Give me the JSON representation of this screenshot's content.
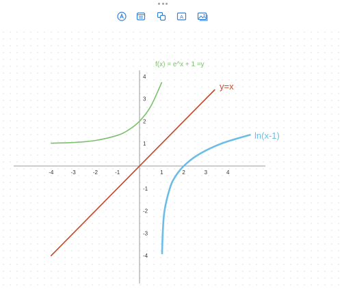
{
  "toolbar": {
    "tools": [
      {
        "icon": "pen-circle-icon"
      },
      {
        "icon": "text-box-icon"
      },
      {
        "icon": "shapes-icon"
      },
      {
        "icon": "text-a-icon",
        "glyph": "A"
      },
      {
        "icon": "image-icon"
      }
    ]
  },
  "colors": {
    "accent": "#2f7fd6",
    "exp_curve": "#7cc06e",
    "line": "#c44a2e",
    "log_curve": "#6bbde6",
    "axis": "#9a9a9a"
  },
  "chart_data": {
    "type": "line",
    "title": "",
    "xlabel": "",
    "ylabel": "",
    "xlim": [
      -4.3,
      4.9
    ],
    "ylim": [
      -4,
      4
    ],
    "x_ticks": [
      -4,
      -3,
      -2,
      -1,
      1,
      2,
      3,
      4
    ],
    "y_ticks": [
      -4,
      -3,
      -2,
      -1,
      1,
      2,
      3,
      4
    ],
    "x_tick_labels": [
      "-4",
      "-3",
      "-2",
      "-1",
      "1",
      "2",
      "3",
      "4"
    ],
    "y_tick_labels": [
      "-4",
      "-3",
      "-2",
      "-1",
      "1",
      "2",
      "3",
      "4"
    ],
    "grid": false,
    "series": [
      {
        "name": "f(x) = e^x + 1 =y",
        "points": [
          [
            -4,
            1.02
          ],
          [
            -3,
            1.05
          ],
          [
            -2,
            1.14
          ],
          [
            -1,
            1.37
          ],
          [
            -0.5,
            1.61
          ],
          [
            0,
            2
          ],
          [
            0.5,
            2.65
          ],
          [
            1,
            3.72
          ]
        ]
      },
      {
        "name": "y=x",
        "points": [
          [
            -4,
            -4
          ],
          [
            3.4,
            3.4
          ]
        ]
      },
      {
        "name": "ln(x-1)",
        "points": [
          [
            1.02,
            -3.9
          ],
          [
            1.05,
            -3.0
          ],
          [
            1.13,
            -2.0
          ],
          [
            1.37,
            -1.0
          ],
          [
            1.6,
            -0.5
          ],
          [
            2,
            0
          ],
          [
            2.65,
            0.5
          ],
          [
            3.7,
            1.0
          ],
          [
            5,
            1.39
          ]
        ]
      }
    ],
    "annotations": [
      {
        "text": "f(x) = e^x + 1 =y"
      },
      {
        "text": "y=x"
      },
      {
        "text": "ln(x-1)"
      }
    ]
  }
}
